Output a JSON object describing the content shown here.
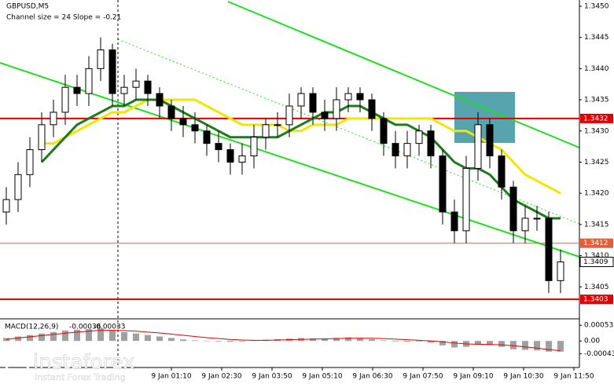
{
  "chart_data": {
    "type": "candlestick",
    "title": "GBPUSD,M5",
    "subtitle": "Channel size = 24 Slope = -0.21",
    "open": [
      1.3417,
      1.3419,
      1.3423,
      1.3427,
      1.3431,
      1.3433,
      1.3437,
      1.3436,
      1.344,
      1.3443,
      1.3436,
      1.3437,
      1.3438,
      1.3436,
      1.3434,
      1.3432,
      1.3431,
      1.343,
      1.3428,
      1.3427,
      1.3425,
      1.3426,
      1.3429,
      1.3431,
      1.3431,
      1.3434,
      1.3436,
      1.3433,
      1.3432,
      1.3435,
      1.3436,
      1.3435,
      1.3432,
      1.3428,
      1.3426,
      1.3428,
      1.343,
      1.3426,
      1.3417,
      1.3414,
      1.3424,
      1.3431,
      1.3426,
      1.3421,
      1.3414,
      1.3416,
      1.3416,
      1.3406
    ],
    "high": [
      1.3421,
      1.3425,
      1.3429,
      1.3433,
      1.3435,
      1.3439,
      1.3439,
      1.3442,
      1.3445,
      1.3444,
      1.3439,
      1.344,
      1.3439,
      1.3437,
      1.3435,
      1.3434,
      1.3433,
      1.3431,
      1.343,
      1.3428,
      1.3428,
      1.3431,
      1.3432,
      1.3433,
      1.3436,
      1.3437,
      1.3437,
      1.3435,
      1.3437,
      1.3437,
      1.3437,
      1.3436,
      1.3433,
      1.343,
      1.343,
      1.3431,
      1.3431,
      1.3427,
      1.3419,
      1.3426,
      1.3433,
      1.3432,
      1.3427,
      1.3422,
      1.3418,
      1.3418,
      1.3417,
      1.3411
    ],
    "low": [
      1.3415,
      1.3417,
      1.3421,
      1.3425,
      1.3429,
      1.3431,
      1.3434,
      1.3434,
      1.3438,
      1.3434,
      1.3434,
      1.3435,
      1.3434,
      1.3432,
      1.343,
      1.3429,
      1.3428,
      1.3426,
      1.3425,
      1.3423,
      1.3423,
      1.3424,
      1.3427,
      1.3429,
      1.3429,
      1.3432,
      1.3431,
      1.343,
      1.343,
      1.3433,
      1.3433,
      1.343,
      1.3426,
      1.3424,
      1.3424,
      1.3426,
      1.3424,
      1.3415,
      1.3412,
      1.3412,
      1.3422,
      1.3424,
      1.3419,
      1.3412,
      1.3412,
      1.3414,
      1.3404,
      1.3404
    ],
    "close": [
      1.3419,
      1.3423,
      1.3427,
      1.3431,
      1.3433,
      1.3437,
      1.3436,
      1.344,
      1.3443,
      1.3436,
      1.3437,
      1.3438,
      1.3436,
      1.3434,
      1.3432,
      1.3431,
      1.343,
      1.3428,
      1.3427,
      1.3425,
      1.3426,
      1.3429,
      1.3431,
      1.3431,
      1.3434,
      1.3436,
      1.3433,
      1.3432,
      1.3435,
      1.3436,
      1.3435,
      1.3432,
      1.3428,
      1.3426,
      1.3428,
      1.343,
      1.3426,
      1.3417,
      1.3414,
      1.3424,
      1.3431,
      1.3426,
      1.3421,
      1.3414,
      1.3416,
      1.3416,
      1.3406,
      1.3409
    ],
    "series": [
      {
        "color": "#f2e600",
        "values": [
          null,
          null,
          null,
          1.3428,
          1.3428,
          1.3429,
          1.343,
          1.3431,
          1.3432,
          1.3433,
          1.3433,
          1.3434,
          1.3435,
          1.3435,
          1.3435,
          1.3435,
          1.3435,
          1.3434,
          1.3433,
          1.3432,
          1.3431,
          1.3431,
          1.3431,
          1.3431,
          1.343,
          1.343,
          1.3431,
          1.3431,
          1.3431,
          1.3432,
          1.3432,
          1.3432,
          1.3432,
          1.3432,
          1.3432,
          1.3432,
          1.3432,
          1.3431,
          1.343,
          1.343,
          1.3429,
          1.3428,
          1.3427,
          1.3425,
          1.3423,
          1.3422,
          1.3421,
          1.342
        ]
      },
      {
        "color": "#1d7a1d",
        "values": [
          null,
          null,
          null,
          1.3425,
          1.3427,
          1.3429,
          1.3431,
          1.3432,
          1.3433,
          1.3434,
          1.3434,
          1.3435,
          1.3435,
          1.3435,
          1.3434,
          1.3433,
          1.3432,
          1.3431,
          1.343,
          1.3429,
          1.3429,
          1.3429,
          1.3429,
          1.3429,
          1.343,
          1.3431,
          1.3432,
          1.3433,
          1.3433,
          1.3434,
          1.3434,
          1.3433,
          1.3432,
          1.3431,
          1.3431,
          1.343,
          1.3429,
          1.3427,
          1.3425,
          1.3424,
          1.3424,
          1.3423,
          1.3421,
          1.3419,
          1.3418,
          1.3417,
          1.3416,
          1.3416
        ]
      }
    ],
    "ylim": [
      1.34,
      1.3451
    ],
    "yticks": [
      {
        "value": 1.345,
        "label": "1.3450"
      },
      1.3445,
      {
        "value": 1.344,
        "label": "1.3440"
      },
      1.3435,
      {
        "value": 1.343,
        "label": "1.3430"
      },
      1.3425,
      {
        "value": 1.342,
        "label": "1.3420"
      },
      1.3415,
      {
        "value": 1.341,
        "label": "1.3410"
      },
      1.3405
    ],
    "levels": [
      {
        "value": 1.3432,
        "color": "#e00000"
      },
      {
        "value": 1.3412,
        "color": "#e0603a"
      },
      {
        "value": 1.3403,
        "color": "#e00000"
      }
    ],
    "xlabels": [
      "9 Jan 01:10",
      "9 Jan 02:30",
      "9 Jan 03:50",
      "9 Jan 05:10",
      "9 Jan 06:30",
      "9 Jan 07:50",
      "9 Jan 09:10",
      "9 Jan 10:30",
      "9 Jan 11:50"
    ],
    "macd": {
      "title": "MACD(12,26,9)",
      "hist_color": "#a0a0a0",
      "signal_color": "#e00000",
      "values": [
        0.0001,
        0.00015,
        0.0002,
        0.00025,
        0.0003,
        0.00035,
        0.00038,
        0.0004,
        0.00042,
        0.00035,
        0.0003,
        0.00025,
        0.0002,
        0.00015,
        0.0001,
        5e-05,
        2e-05,
        0,
        -2e-05,
        -3e-05,
        -2e-05,
        1e-05,
        4e-05,
        6e-05,
        8e-05,
        0.0001,
        9e-05,
        8e-05,
        0.0001,
        0.00012,
        0.0001,
        6e-05,
        2e-05,
        -2e-05,
        -3e-05,
        -2e-05,
        -6e-05,
        -0.00015,
        -0.00022,
        -0.0002,
        -0.00012,
        -0.00014,
        -0.0002,
        -0.00028,
        -0.0003,
        -0.00032,
        -0.00036,
        -0.00036
      ],
      "signal": [
        5e-05,
        0.0001,
        0.00014,
        0.00018,
        0.00022,
        0.00026,
        0.0003,
        0.00033,
        0.00036,
        0.00036,
        0.00035,
        0.00033,
        0.0003,
        0.00027,
        0.00023,
        0.00019,
        0.00015,
        0.00011,
        8e-05,
        5e-05,
        3e-05,
        2e-05,
        2e-05,
        3e-05,
        4e-05,
        5e-05,
        6e-05,
        7e-05,
        8e-05,
        9e-05,
        9e-05,
        9e-05,
        8e-05,
        6e-05,
        4e-05,
        2e-05,
        0,
        -3e-05,
        -7e-05,
        -0.0001,
        -0.00011,
        -0.00012,
        -0.00013,
        -0.00016,
        -0.0002,
        -0.00024,
        -0.00029,
        -0.00033
      ],
      "ylim": [
        -0.00087,
        0.00072
      ],
      "yticks": [
        0.00053,
        {
          "value": 0,
          "label": "0.00"
        },
        -0.00043
      ]
    },
    "watermark": {
      "name": "instaforex",
      "tagline": "Instant Forex Trading"
    }
  }
}
